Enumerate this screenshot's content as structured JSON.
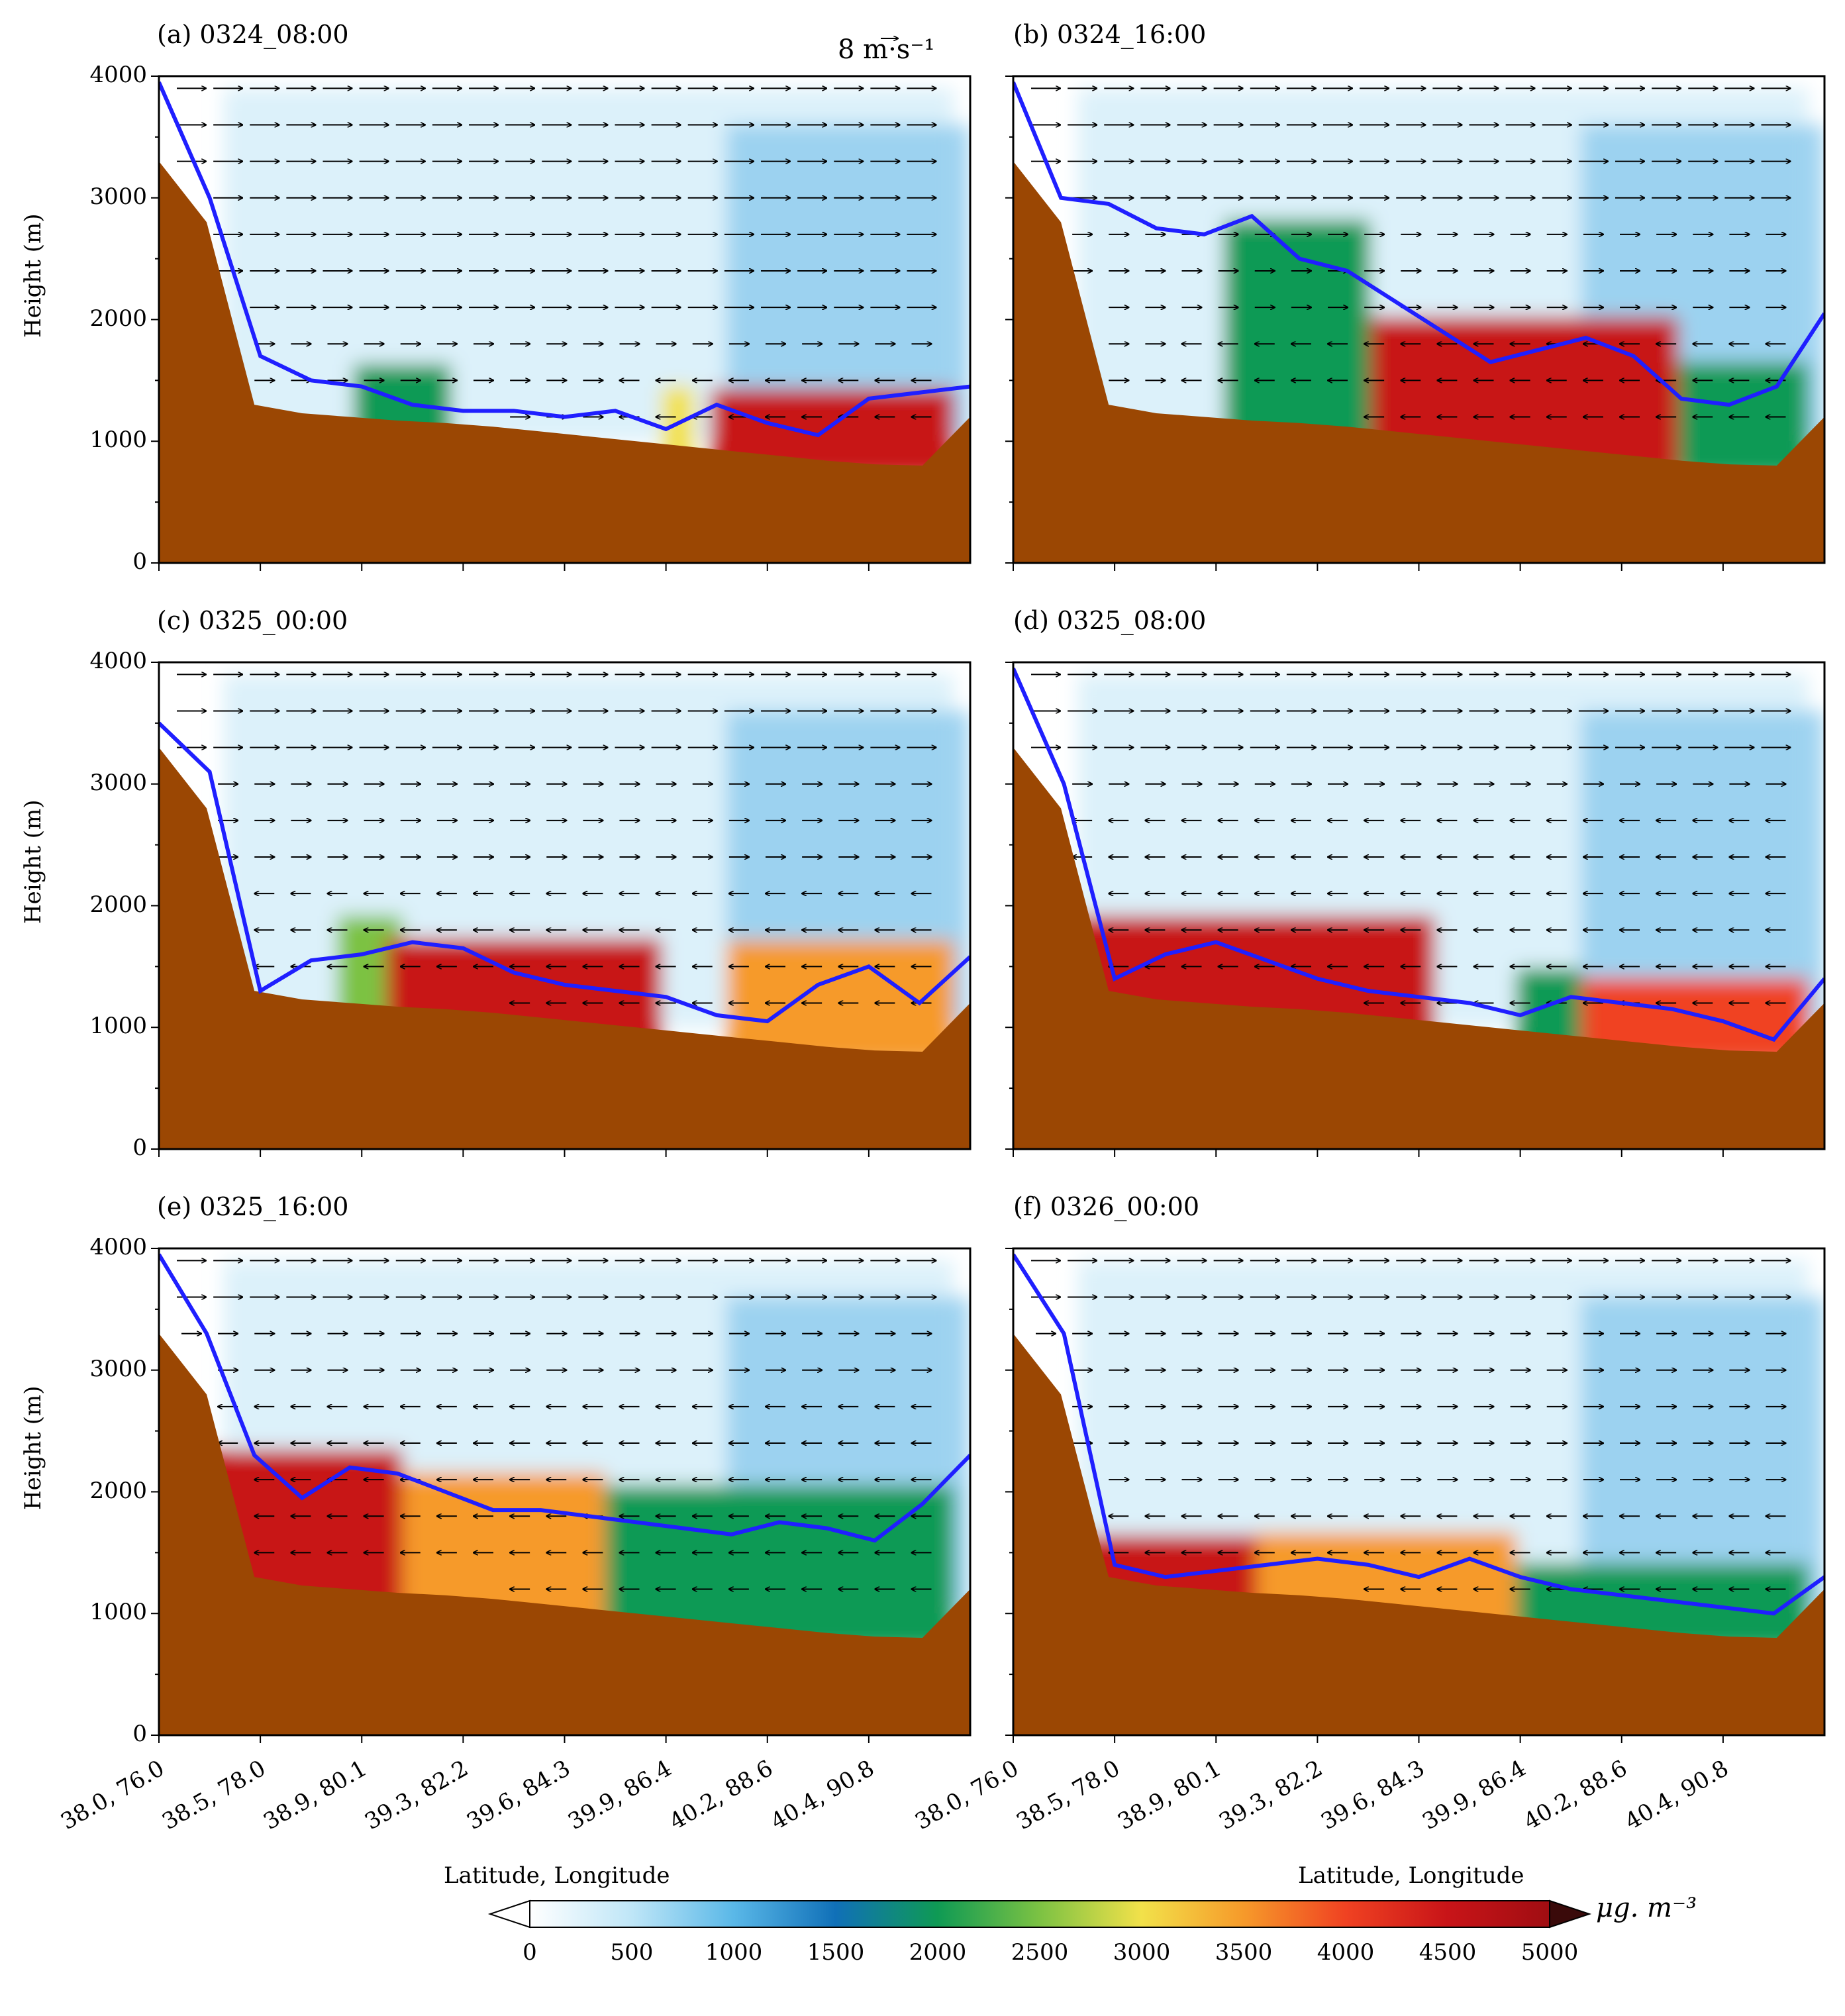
{
  "chart_data": {
    "type": "heatmap",
    "description_kind": "vertical cross-section panels with wind vectors",
    "panels": [
      {
        "id": "a",
        "title": "(a) 0324_08:00",
        "pbl_height": [
          3950,
          3000,
          1700,
          1500,
          1450,
          1300,
          1250,
          1250,
          1200,
          1250,
          1100,
          1300,
          1150,
          1050,
          1350,
          1400,
          1450
        ],
        "high_conc": [
          [
            0.24,
            0.36,
            2200
          ],
          [
            0.62,
            0.66,
            3200
          ],
          [
            0.68,
            0.98,
            4600
          ]
        ],
        "easterly_band": [
          0.55,
          1.0,
          900,
          1500
        ],
        "westerly_top": 1800
      },
      {
        "id": "b",
        "title": "(b) 0324_16:00",
        "pbl_height": [
          3950,
          3000,
          2950,
          2750,
          2700,
          2850,
          2500,
          2400,
          2150,
          1900,
          1650,
          1750,
          1850,
          1700,
          1350,
          1300,
          1450,
          2050
        ],
        "high_conc": [
          [
            0.26,
            0.44,
            2300
          ],
          [
            0.44,
            0.82,
            4700
          ],
          [
            0.82,
            0.98,
            2400
          ]
        ],
        "easterly_band": [
          0.2,
          1.0,
          900,
          2000
        ],
        "westerly_top": 2700
      },
      {
        "id": "c",
        "title": "(c) 0325_00:00",
        "pbl_height": [
          3500,
          3100,
          1300,
          1550,
          1600,
          1700,
          1650,
          1450,
          1350,
          1300,
          1250,
          1100,
          1050,
          1350,
          1500,
          1200,
          1580
        ],
        "high_conc": [
          [
            0.22,
            0.3,
            2600
          ],
          [
            0.28,
            0.62,
            4800
          ],
          [
            0.7,
            0.98,
            3600
          ]
        ],
        "easterly_band": [
          0.1,
          1.0,
          1000,
          2300
        ],
        "westerly_top": 3000
      },
      {
        "id": "d",
        "title": "(d) 0325_08:00",
        "pbl_height": [
          3950,
          3000,
          1400,
          1600,
          1700,
          1550,
          1400,
          1300,
          1250,
          1200,
          1100,
          1250,
          1200,
          1150,
          1050,
          900,
          1400
        ],
        "high_conc": [
          [
            0.05,
            0.52,
            4800
          ],
          [
            0.62,
            0.7,
            2400
          ],
          [
            0.7,
            0.98,
            4200
          ]
        ],
        "easterly_band": [
          0.05,
          1.0,
          1000,
          2800
        ],
        "westerly_top": 3200
      },
      {
        "id": "e",
        "title": "(e) 0325_16:00",
        "pbl_height": [
          3950,
          3300,
          2300,
          1950,
          2200,
          2150,
          2000,
          1850,
          1850,
          1800,
          1750,
          1700,
          1650,
          1750,
          1700,
          1600,
          1900,
          2300
        ],
        "high_conc": [
          [
            0.02,
            0.3,
            4800
          ],
          [
            0.3,
            0.55,
            3600
          ],
          [
            0.55,
            0.98,
            2400
          ]
        ],
        "easterly_band": [
          0.05,
          1.0,
          1000,
          2900
        ],
        "westerly_top": 3400
      },
      {
        "id": "f",
        "title": "(f) 0326_00:00",
        "pbl_height": [
          3950,
          3300,
          1400,
          1300,
          1350,
          1400,
          1450,
          1400,
          1300,
          1450,
          1300,
          1200,
          1150,
          1100,
          1050,
          1000,
          1300
        ],
        "high_conc": [
          [
            0.02,
            0.3,
            4800
          ],
          [
            0.3,
            0.62,
            3800
          ],
          [
            0.62,
            0.98,
            2400
          ]
        ],
        "easterly_band": [
          0.1,
          1.0,
          1000,
          2000
        ],
        "westerly_top": 3300
      }
    ],
    "ylabel": "Height (m)",
    "yticks": [
      "0",
      "1000",
      "2000",
      "3000",
      "4000"
    ],
    "ylim": [
      0,
      4000
    ],
    "xlabel": "Latitude, Longitude",
    "xticks": [
      "38.0, 76.0",
      "38.5, 78.0",
      "38.9, 80.1",
      "39.3, 82.2",
      "39.6, 84.3",
      "39.9, 86.4",
      "40.2, 88.6",
      "40.4, 90.8"
    ],
    "terrain": [
      3300,
      2800,
      1300,
      1230,
      1200,
      1170,
      1150,
      1120,
      1080,
      1040,
      1000,
      960,
      920,
      880,
      840,
      810,
      800,
      1200
    ],
    "reference_vector": "8 m·s⁻¹",
    "colorbar": {
      "unit": "μg. m⁻³",
      "ticks": [
        "0",
        "500",
        "1000",
        "1500",
        "2000",
        "2500",
        "3000",
        "3500",
        "4000",
        "4500",
        "5000"
      ],
      "range": [
        0,
        5000
      ]
    },
    "colors": {
      "terrain": "#9b4703",
      "pbl_line": "#1f1fff",
      "vector": "#000000"
    }
  }
}
